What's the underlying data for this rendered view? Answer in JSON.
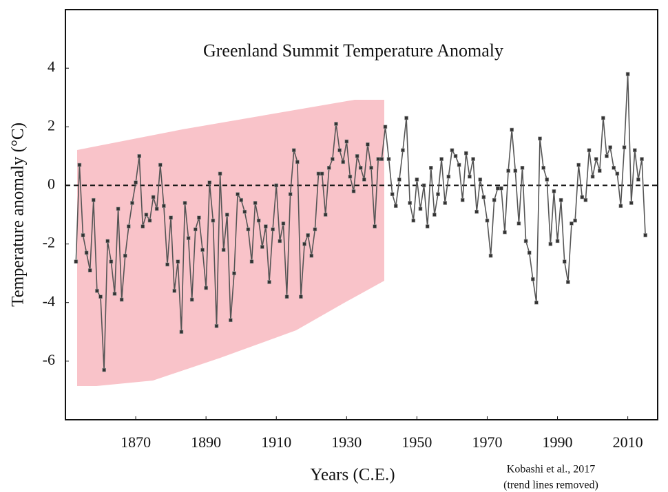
{
  "chart_data": {
    "type": "line",
    "title": "Greenland Summit Temperature Anomaly",
    "xlabel": "Years (C.E.)",
    "ylabel": "Temperature anomaly (°C)",
    "annotations": [
      "Kobashi et al., 2017",
      "(trend lines removed)"
    ],
    "xlim": [
      1850,
      2018.5
    ],
    "ylim": [
      -8,
      6
    ],
    "xticks": [
      1870,
      1890,
      1910,
      1930,
      1950,
      1970,
      1990,
      2010
    ],
    "yticks": [
      -6,
      -4,
      -2,
      0,
      2,
      4
    ],
    "reference_line": 0,
    "series": [
      {
        "color": "#555555",
        "x": [
          1853,
          1854,
          1855,
          1856,
          1857,
          1858,
          1859,
          1860,
          1861,
          1862,
          1863,
          1864,
          1865,
          1866,
          1867,
          1868,
          1869,
          1870,
          1871,
          1872,
          1873,
          1874,
          1875,
          1876,
          1877,
          1878,
          1879,
          1880,
          1881,
          1882,
          1883,
          1884,
          1885,
          1886,
          1887,
          1888,
          1889,
          1890,
          1891,
          1892,
          1893,
          1894,
          1895,
          1896,
          1897,
          1898,
          1899,
          1900,
          1901,
          1902,
          1903,
          1904,
          1905,
          1906,
          1907,
          1908,
          1909,
          1910,
          1911,
          1912,
          1913,
          1914,
          1915,
          1916,
          1917,
          1918,
          1919,
          1920,
          1921,
          1922,
          1923,
          1924,
          1925,
          1926,
          1927,
          1928,
          1929,
          1930,
          1931,
          1932,
          1933,
          1934,
          1935,
          1936,
          1937,
          1938,
          1939,
          1940,
          1941,
          1942,
          1943,
          1944,
          1945,
          1946,
          1947,
          1948,
          1949,
          1950,
          1951,
          1952,
          1953,
          1954,
          1955,
          1956,
          1957,
          1958,
          1959,
          1960,
          1961,
          1962,
          1963,
          1964,
          1965,
          1966,
          1967,
          1968,
          1969,
          1970,
          1971,
          1972,
          1973,
          1974,
          1975,
          1976,
          1977,
          1978,
          1979,
          1980,
          1981,
          1982,
          1983,
          1984,
          1985,
          1986,
          1987,
          1988,
          1989,
          1990,
          1991,
          1992,
          1993,
          1994,
          1995,
          1996,
          1997,
          1998,
          1999,
          2000,
          2001,
          2002,
          2003,
          2004,
          2005,
          2006,
          2007,
          2008,
          2009,
          2010,
          2011,
          2012,
          2013,
          2014,
          2015
        ],
        "values": [
          -2.6,
          0.7,
          -1.7,
          -2.3,
          -2.9,
          -0.5,
          -3.6,
          -3.8,
          -6.3,
          -1.9,
          -2.6,
          -3.7,
          -0.8,
          -3.9,
          -2.4,
          -1.4,
          -0.6,
          0.1,
          1.0,
          -1.4,
          -1.0,
          -1.2,
          -0.4,
          -0.8,
          0.7,
          -0.7,
          -2.7,
          -1.1,
          -3.6,
          -2.6,
          -5.0,
          -0.6,
          -1.8,
          -3.9,
          -1.5,
          -1.1,
          -2.2,
          -3.5,
          0.1,
          -1.2,
          -4.8,
          0.4,
          -2.2,
          -1.0,
          -4.6,
          -3.0,
          -0.3,
          -0.5,
          -0.9,
          -1.5,
          -2.6,
          -0.6,
          -1.2,
          -2.1,
          -1.4,
          -3.3,
          -1.5,
          0.0,
          -1.9,
          -1.3,
          -3.8,
          -0.3,
          1.2,
          0.8,
          -3.8,
          -2.0,
          -1.7,
          -2.4,
          -1.5,
          0.4,
          0.4,
          -1.0,
          0.6,
          0.9,
          2.1,
          1.2,
          0.8,
          1.5,
          0.3,
          -0.2,
          1.0,
          0.6,
          0.2,
          1.4,
          0.6,
          -1.4,
          0.9,
          0.9,
          2.0,
          0.9,
          -0.3,
          -0.7,
          0.2,
          1.2,
          2.3,
          -0.6,
          -1.2,
          0.2,
          -0.8,
          0.0,
          -1.4,
          0.6,
          -1.0,
          -0.3,
          0.9,
          -0.6,
          0.3,
          1.2,
          1.0,
          0.7,
          -0.5,
          1.1,
          0.3,
          0.9,
          -0.9,
          0.2,
          -0.4,
          -1.2,
          -2.4,
          -0.5,
          -0.1,
          -0.1,
          -1.6,
          0.5,
          1.9,
          0.5,
          -1.3,
          0.6,
          -1.9,
          -2.3,
          -3.2,
          -4.0,
          1.6,
          0.6,
          0.2,
          -2.0,
          -0.2,
          -1.9,
          -0.5,
          -2.6,
          -3.3,
          -1.3,
          -1.2,
          0.7,
          -0.4,
          -0.5,
          1.2,
          0.3,
          0.9,
          0.5,
          2.3,
          1.0,
          1.3,
          0.6,
          0.4,
          -0.7,
          1.3,
          3.8,
          -0.6,
          1.2,
          0.2,
          0.9,
          -1.7
        ]
      }
    ]
  }
}
